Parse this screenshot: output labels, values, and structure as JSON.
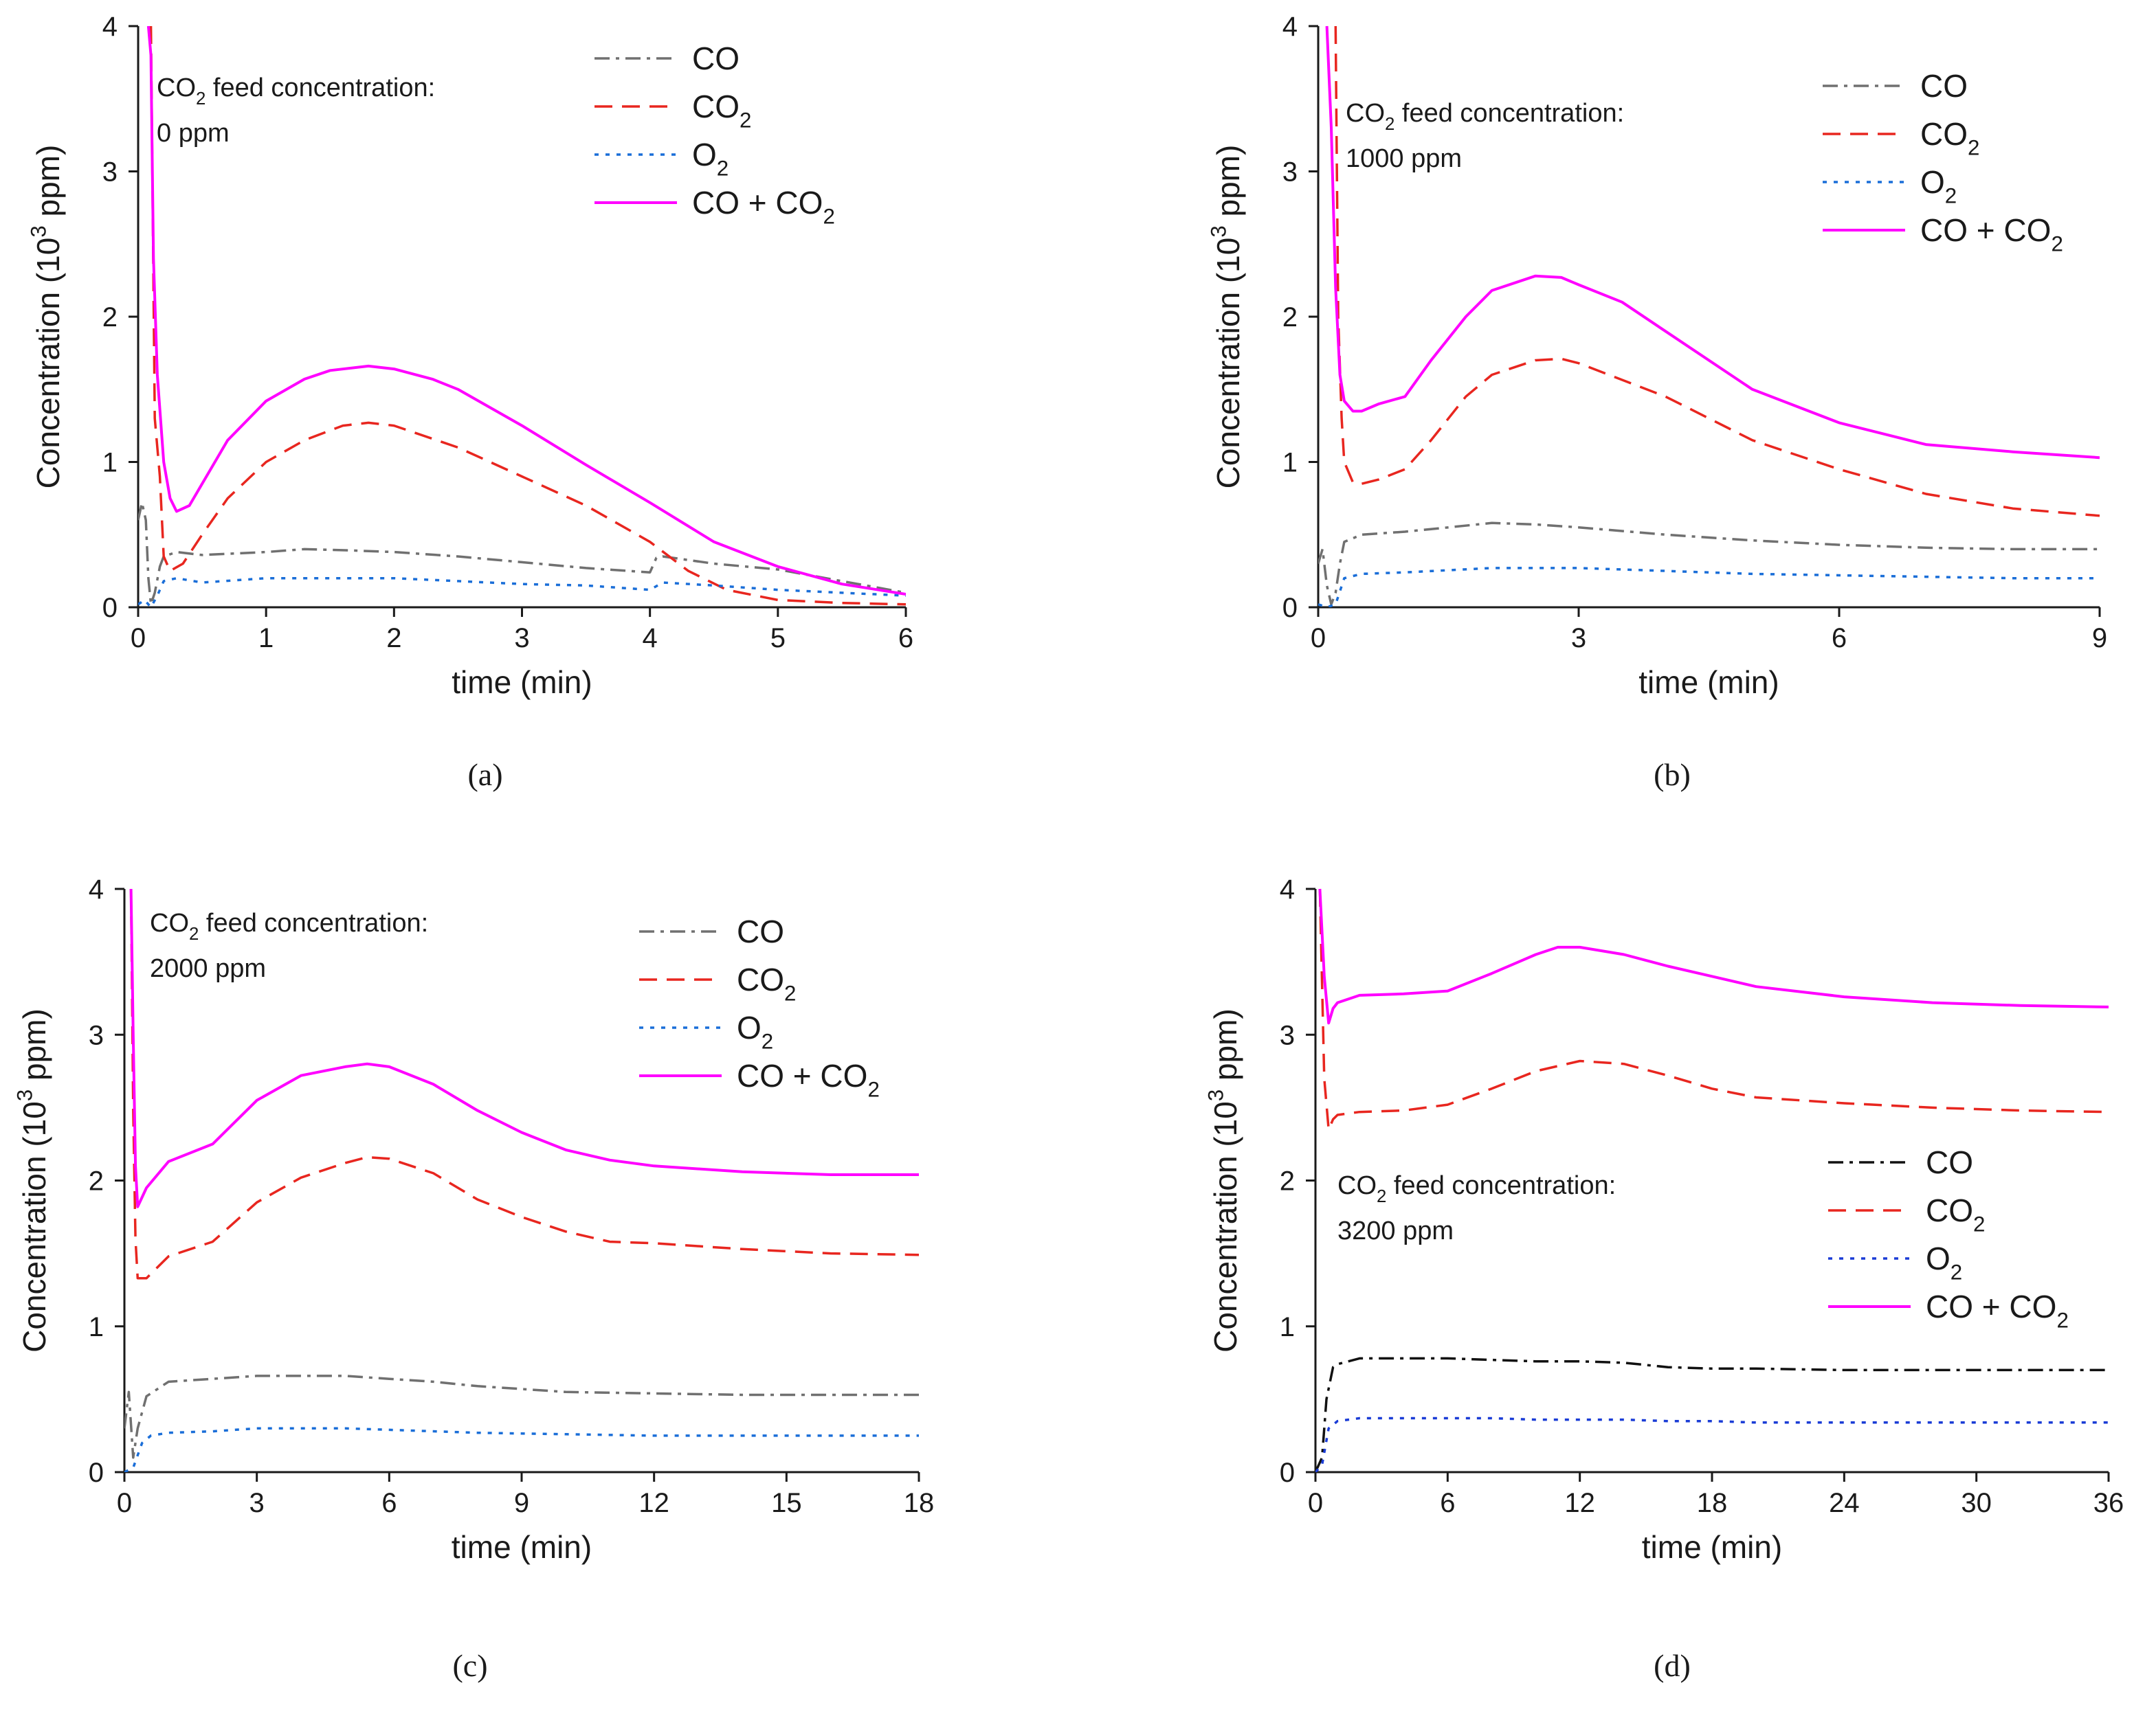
{
  "figure_title": "",
  "chart_data": [
    {
      "panel": "(a)",
      "type": "line",
      "title": "",
      "xlabel": "time (min)",
      "ylabel": "Concentration (10³ ppm)",
      "ylabel_parts": [
        "Concentration (10",
        "3",
        " ppm)"
      ],
      "xlim": [
        0,
        6
      ],
      "ylim": [
        0,
        4
      ],
      "xticks": [
        0,
        1,
        2,
        3,
        4,
        5,
        6
      ],
      "yticks": [
        0,
        1,
        2,
        3,
        4
      ],
      "annotation": [
        "CO",
        "2",
        " feed concentration:",
        "0 ppm"
      ],
      "legend_position": "top-right",
      "legend_labels": [
        [
          "CO",
          ""
        ],
        [
          "CO",
          "2"
        ],
        [
          "O",
          "2"
        ],
        [
          "CO + CO",
          "2"
        ]
      ],
      "series": [
        {
          "name": "CO",
          "color": "#707070",
          "style": "dashdot",
          "x": [
            0,
            0.03,
            0.06,
            0.08,
            0.1,
            0.13,
            0.17,
            0.2,
            0.3,
            0.5,
            1,
            1.3,
            1.7,
            2,
            2.5,
            3,
            3.5,
            4,
            4.05,
            4.1,
            4.5,
            5,
            5.5,
            6
          ],
          "y": [
            0.6,
            0.72,
            0.6,
            0.2,
            0.02,
            0.1,
            0.28,
            0.35,
            0.38,
            0.36,
            0.38,
            0.4,
            0.39,
            0.38,
            0.35,
            0.31,
            0.27,
            0.24,
            0.34,
            0.35,
            0.3,
            0.26,
            0.18,
            0.1
          ]
        },
        {
          "name": "CO₂",
          "color": "#e8261f",
          "style": "dashed",
          "x": [
            0.1,
            0.13,
            0.17,
            0.2,
            0.25,
            0.35,
            0.5,
            0.7,
            1,
            1.3,
            1.6,
            1.8,
            2,
            2.5,
            3,
            3.5,
            4,
            4.3,
            4.6,
            5,
            5.5,
            6
          ],
          "y": [
            4.0,
            1.3,
            0.9,
            0.35,
            0.25,
            0.3,
            0.5,
            0.75,
            1.0,
            1.15,
            1.25,
            1.27,
            1.25,
            1.1,
            0.9,
            0.7,
            0.45,
            0.25,
            0.12,
            0.05,
            0.03,
            0.02
          ]
        },
        {
          "name": "O₂",
          "color": "#1a6ed8",
          "style": "dotted",
          "x": [
            0,
            0.05,
            0.1,
            0.15,
            0.2,
            0.3,
            0.5,
            1,
            1.5,
            2,
            2.5,
            3,
            3.5,
            4,
            4.1,
            4.5,
            5,
            5.5,
            6
          ],
          "y": [
            0.02,
            0.05,
            0.0,
            0.08,
            0.18,
            0.2,
            0.17,
            0.2,
            0.2,
            0.2,
            0.18,
            0.16,
            0.15,
            0.12,
            0.17,
            0.15,
            0.12,
            0.1,
            0.08
          ]
        },
        {
          "name": "CO + CO₂",
          "color": "#ff00ff",
          "style": "solid",
          "x": [
            0.08,
            0.1,
            0.12,
            0.15,
            0.2,
            0.25,
            0.3,
            0.4,
            0.5,
            0.7,
            1,
            1.3,
            1.5,
            1.8,
            2,
            2.3,
            2.5,
            3,
            3.5,
            4,
            4.5,
            5,
            5.5,
            6
          ],
          "y": [
            4.0,
            3.8,
            2.4,
            1.6,
            1.0,
            0.75,
            0.66,
            0.7,
            0.85,
            1.15,
            1.42,
            1.57,
            1.63,
            1.66,
            1.64,
            1.57,
            1.5,
            1.25,
            0.98,
            0.72,
            0.45,
            0.28,
            0.16,
            0.09
          ]
        }
      ]
    },
    {
      "panel": "(b)",
      "type": "line",
      "title": "",
      "xlabel": "time (min)",
      "ylabel": "Concentration (10³ ppm)",
      "ylabel_parts": [
        "Concentration (10",
        "3",
        " ppm)"
      ],
      "xlim": [
        0,
        9
      ],
      "ylim": [
        0,
        4
      ],
      "xticks": [
        0,
        3,
        6,
        9
      ],
      "yticks": [
        0,
        1,
        2,
        3,
        4
      ],
      "annotation": [
        "CO",
        "2",
        " feed concentration:",
        "1000 ppm"
      ],
      "legend_position": "top-right",
      "legend_labels": [
        [
          "CO",
          ""
        ],
        [
          "CO",
          "2"
        ],
        [
          "O",
          "2"
        ],
        [
          "CO + CO",
          "2"
        ]
      ],
      "series": [
        {
          "name": "CO",
          "color": "#707070",
          "style": "dashdot",
          "x": [
            0,
            0.05,
            0.1,
            0.15,
            0.2,
            0.25,
            0.3,
            0.5,
            1,
            1.5,
            2,
            2.5,
            3,
            4,
            5,
            6,
            7,
            8,
            9
          ],
          "y": [
            0.3,
            0.4,
            0.15,
            0.02,
            0.1,
            0.3,
            0.45,
            0.5,
            0.52,
            0.55,
            0.58,
            0.57,
            0.55,
            0.5,
            0.46,
            0.43,
            0.41,
            0.4,
            0.4
          ]
        },
        {
          "name": "CO₂",
          "color": "#e8261f",
          "style": "dashed",
          "x": [
            0.2,
            0.23,
            0.27,
            0.3,
            0.4,
            0.5,
            0.7,
            1,
            1.3,
            1.7,
            2,
            2.5,
            2.8,
            3,
            4,
            5,
            6,
            7,
            8,
            9
          ],
          "y": [
            4.0,
            2.0,
            1.3,
            1.0,
            0.86,
            0.85,
            0.88,
            0.95,
            1.15,
            1.45,
            1.6,
            1.7,
            1.71,
            1.68,
            1.45,
            1.15,
            0.95,
            0.78,
            0.68,
            0.63
          ]
        },
        {
          "name": "O₂",
          "color": "#1a6ed8",
          "style": "dotted",
          "x": [
            0,
            0.1,
            0.2,
            0.3,
            0.5,
            1,
            2,
            3,
            4,
            5,
            6,
            7,
            8,
            9
          ],
          "y": [
            0.02,
            0.0,
            0.02,
            0.2,
            0.23,
            0.24,
            0.27,
            0.27,
            0.25,
            0.23,
            0.22,
            0.21,
            0.2,
            0.2
          ]
        },
        {
          "name": "CO + CO₂",
          "color": "#ff00ff",
          "style": "solid",
          "x": [
            0.1,
            0.15,
            0.2,
            0.25,
            0.3,
            0.4,
            0.5,
            0.7,
            1,
            1.3,
            1.7,
            2,
            2.5,
            2.8,
            3,
            3.5,
            4,
            5,
            6,
            7,
            8,
            9
          ],
          "y": [
            4.0,
            3.3,
            2.2,
            1.6,
            1.42,
            1.35,
            1.35,
            1.4,
            1.45,
            1.7,
            2.0,
            2.18,
            2.28,
            2.27,
            2.22,
            2.1,
            1.9,
            1.5,
            1.27,
            1.12,
            1.07,
            1.03
          ]
        }
      ]
    },
    {
      "panel": "(c)",
      "type": "line",
      "title": "",
      "xlabel": "time (min)",
      "ylabel": "Concentration (10³ ppm)",
      "ylabel_parts": [
        "Concentration (10",
        "3",
        " ppm)"
      ],
      "xlim": [
        0,
        18
      ],
      "ylim": [
        0,
        4
      ],
      "xticks": [
        0,
        3,
        6,
        9,
        12,
        15,
        18
      ],
      "yticks": [
        0,
        1,
        2,
        3,
        4
      ],
      "annotation": [
        "CO",
        "2",
        " feed concentration:",
        "2000 ppm"
      ],
      "legend_position": "top-right",
      "legend_labels": [
        [
          "CO",
          ""
        ],
        [
          "CO",
          "2"
        ],
        [
          "O",
          "2"
        ],
        [
          "CO + CO",
          "2"
        ]
      ],
      "series": [
        {
          "name": "CO",
          "color": "#707070",
          "style": "dashdot",
          "x": [
            0,
            0.1,
            0.2,
            0.3,
            0.5,
            1,
            2,
            3,
            4,
            5,
            6,
            7,
            8,
            9,
            10,
            12,
            14,
            16,
            18
          ],
          "y": [
            0.3,
            0.55,
            0.1,
            0.3,
            0.52,
            0.62,
            0.64,
            0.66,
            0.66,
            0.66,
            0.64,
            0.62,
            0.59,
            0.57,
            0.55,
            0.54,
            0.53,
            0.53,
            0.53
          ]
        },
        {
          "name": "CO₂",
          "color": "#e8261f",
          "style": "dashed",
          "x": [
            0.15,
            0.2,
            0.25,
            0.3,
            0.5,
            1,
            2,
            3,
            4,
            5,
            5.5,
            6,
            7,
            8,
            9,
            10,
            11,
            12,
            14,
            16,
            18
          ],
          "y": [
            4.0,
            2.5,
            1.6,
            1.33,
            1.33,
            1.48,
            1.58,
            1.85,
            2.02,
            2.12,
            2.16,
            2.15,
            2.05,
            1.87,
            1.75,
            1.65,
            1.58,
            1.57,
            1.53,
            1.5,
            1.49
          ]
        },
        {
          "name": "O₂",
          "color": "#1a6ed8",
          "style": "dotted",
          "x": [
            0,
            0.2,
            0.4,
            0.6,
            1,
            2,
            3,
            4,
            5,
            6,
            8,
            10,
            12,
            14,
            16,
            18
          ],
          "y": [
            0.0,
            0.03,
            0.2,
            0.25,
            0.27,
            0.28,
            0.3,
            0.3,
            0.3,
            0.29,
            0.27,
            0.26,
            0.25,
            0.25,
            0.25,
            0.25
          ]
        },
        {
          "name": "CO + CO₂",
          "color": "#ff00ff",
          "style": "solid",
          "x": [
            0.15,
            0.2,
            0.25,
            0.3,
            0.5,
            1,
            2,
            3,
            4,
            5,
            5.5,
            6,
            7,
            8,
            9,
            10,
            11,
            12,
            14,
            16,
            18
          ],
          "y": [
            4.0,
            3.0,
            2.1,
            1.82,
            1.95,
            2.13,
            2.25,
            2.55,
            2.72,
            2.78,
            2.8,
            2.78,
            2.66,
            2.48,
            2.33,
            2.21,
            2.14,
            2.1,
            2.06,
            2.04,
            2.04
          ]
        }
      ]
    },
    {
      "panel": "(d)",
      "type": "line",
      "title": "",
      "xlabel": "time (min)",
      "ylabel": "Concentration (10³ ppm)",
      "ylabel_parts": [
        "Concentration (10",
        "3",
        " ppm)"
      ],
      "xlim": [
        0,
        36
      ],
      "ylim": [
        0,
        4
      ],
      "xticks": [
        0,
        6,
        12,
        18,
        24,
        30,
        36
      ],
      "yticks": [
        0,
        1,
        2,
        3,
        4
      ],
      "annotation": [
        "CO",
        "2",
        " feed concentration:",
        "3200 ppm"
      ],
      "legend_position": "center-right",
      "legend_labels": [
        [
          "CO",
          ""
        ],
        [
          "CO",
          "2"
        ],
        [
          "O",
          "2"
        ],
        [
          "CO + CO",
          "2"
        ]
      ],
      "series": [
        {
          "name": "CO",
          "color": "#111111",
          "style": "dashdot",
          "x": [
            0,
            0.3,
            0.5,
            0.8,
            1,
            2,
            4,
            6,
            8,
            10,
            12,
            14,
            16,
            18,
            20,
            24,
            28,
            32,
            36
          ],
          "y": [
            0.0,
            0.1,
            0.5,
            0.72,
            0.74,
            0.78,
            0.78,
            0.78,
            0.77,
            0.76,
            0.76,
            0.75,
            0.72,
            0.71,
            0.71,
            0.7,
            0.7,
            0.7,
            0.7
          ]
        },
        {
          "name": "CO₂",
          "color": "#e8261f",
          "style": "dashed",
          "x": [
            0.2,
            0.4,
            0.6,
            0.8,
            1,
            2,
            4,
            6,
            8,
            10,
            12,
            14,
            16,
            18,
            20,
            24,
            28,
            32,
            36
          ],
          "y": [
            4.0,
            2.7,
            2.35,
            2.42,
            2.45,
            2.47,
            2.48,
            2.52,
            2.63,
            2.75,
            2.82,
            2.8,
            2.72,
            2.63,
            2.57,
            2.53,
            2.5,
            2.48,
            2.47
          ]
        },
        {
          "name": "O₂",
          "color": "#1a3cd6",
          "style": "dotted",
          "x": [
            0,
            0.3,
            0.6,
            1,
            2,
            4,
            6,
            8,
            10,
            12,
            14,
            16,
            18,
            20,
            24,
            28,
            32,
            36
          ],
          "y": [
            0.0,
            0.05,
            0.3,
            0.35,
            0.37,
            0.37,
            0.37,
            0.37,
            0.36,
            0.36,
            0.36,
            0.35,
            0.35,
            0.34,
            0.34,
            0.34,
            0.34,
            0.34
          ]
        },
        {
          "name": "CO + CO₂",
          "color": "#ff00ff",
          "style": "solid",
          "x": [
            0.2,
            0.4,
            0.6,
            0.8,
            1,
            2,
            4,
            6,
            8,
            10,
            11,
            12,
            14,
            16,
            18,
            20,
            24,
            28,
            32,
            36
          ],
          "y": [
            4.0,
            3.4,
            3.08,
            3.18,
            3.22,
            3.27,
            3.28,
            3.3,
            3.42,
            3.55,
            3.6,
            3.6,
            3.55,
            3.47,
            3.4,
            3.33,
            3.26,
            3.22,
            3.2,
            3.19
          ]
        }
      ]
    }
  ]
}
